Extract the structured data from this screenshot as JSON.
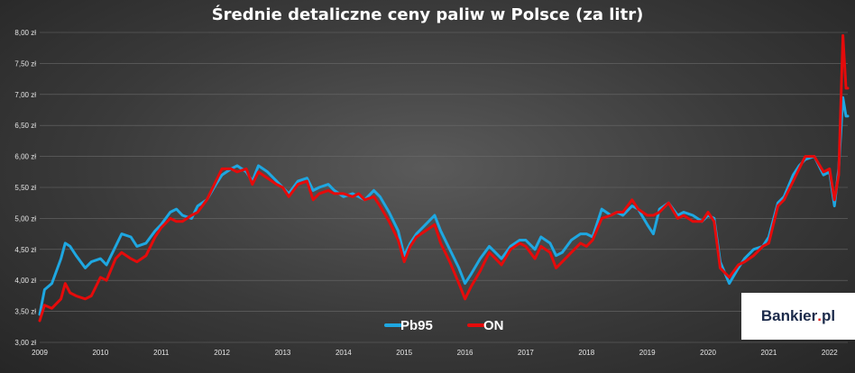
{
  "chart_data": {
    "type": "line",
    "title": "Średnie detaliczne ceny paliw w Polsce (za litr)",
    "xlabel": "",
    "ylabel": "",
    "xlim": [
      2009,
      2022.3
    ],
    "ylim": [
      3.0,
      8.0
    ],
    "y_ticks": [
      "3,00 zł",
      "3,50 zł",
      "4,00 zł",
      "4,50 zł",
      "5,00 zł",
      "5,50 zł",
      "6,00 zł",
      "6,50 zł",
      "7,00 zł",
      "7,50 zł",
      "8,00 zł"
    ],
    "x_ticks": [
      "2009",
      "2010",
      "2011",
      "2012",
      "2013",
      "2014",
      "2015",
      "2016",
      "2017",
      "2018",
      "2019",
      "2020",
      "2021",
      "2022"
    ],
    "grid": true,
    "legend": "bottom-center",
    "series": [
      {
        "name": "Pb95",
        "color": "#1ea7e1",
        "x": [
          2009.0,
          2009.08,
          2009.2,
          2009.35,
          2009.42,
          2009.5,
          2009.6,
          2009.75,
          2009.85,
          2010.0,
          2010.1,
          2010.25,
          2010.35,
          2010.5,
          2010.6,
          2010.75,
          2010.9,
          2011.0,
          2011.15,
          2011.25,
          2011.35,
          2011.5,
          2011.6,
          2011.75,
          2011.9,
          2012.0,
          2012.15,
          2012.25,
          2012.4,
          2012.5,
          2012.6,
          2012.75,
          2012.9,
          2013.0,
          2013.1,
          2013.25,
          2013.4,
          2013.5,
          2013.6,
          2013.75,
          2013.85,
          2014.0,
          2014.15,
          2014.25,
          2014.35,
          2014.5,
          2014.6,
          2014.75,
          2014.9,
          2015.0,
          2015.1,
          2015.2,
          2015.35,
          2015.5,
          2015.6,
          2015.75,
          2015.9,
          2016.0,
          2016.1,
          2016.25,
          2016.4,
          2016.5,
          2016.6,
          2016.75,
          2016.9,
          2017.0,
          2017.15,
          2017.25,
          2017.4,
          2017.5,
          2017.6,
          2017.75,
          2017.9,
          2018.0,
          2018.1,
          2018.25,
          2018.4,
          2018.5,
          2018.6,
          2018.75,
          2018.85,
          2019.0,
          2019.1,
          2019.2,
          2019.35,
          2019.5,
          2019.6,
          2019.75,
          2019.9,
          2020.0,
          2020.1,
          2020.2,
          2020.35,
          2020.5,
          2020.6,
          2020.75,
          2020.9,
          2021.0,
          2021.15,
          2021.25,
          2021.4,
          2021.5,
          2021.6,
          2021.75,
          2021.9,
          2022.0,
          2022.08,
          2022.15,
          2022.22,
          2022.27,
          2022.3
        ],
        "values": [
          3.45,
          3.85,
          3.95,
          4.35,
          4.6,
          4.55,
          4.4,
          4.2,
          4.3,
          4.35,
          4.25,
          4.55,
          4.75,
          4.7,
          4.55,
          4.6,
          4.8,
          4.9,
          5.1,
          5.15,
          5.05,
          5.0,
          5.2,
          5.3,
          5.55,
          5.7,
          5.8,
          5.85,
          5.75,
          5.6,
          5.85,
          5.75,
          5.6,
          5.5,
          5.4,
          5.6,
          5.65,
          5.45,
          5.5,
          5.55,
          5.45,
          5.35,
          5.4,
          5.35,
          5.3,
          5.45,
          5.35,
          5.1,
          4.8,
          4.4,
          4.6,
          4.75,
          4.9,
          5.05,
          4.8,
          4.5,
          4.2,
          3.95,
          4.1,
          4.35,
          4.55,
          4.45,
          4.35,
          4.55,
          4.65,
          4.65,
          4.5,
          4.7,
          4.6,
          4.4,
          4.45,
          4.65,
          4.75,
          4.75,
          4.7,
          5.15,
          5.05,
          5.1,
          5.05,
          5.2,
          5.15,
          4.9,
          4.75,
          5.15,
          5.25,
          5.05,
          5.1,
          5.05,
          4.95,
          5.05,
          5.0,
          4.3,
          3.95,
          4.2,
          4.35,
          4.5,
          4.55,
          4.7,
          5.25,
          5.35,
          5.7,
          5.85,
          5.95,
          6.0,
          5.7,
          5.75,
          5.2,
          5.8,
          6.95,
          6.65,
          6.65
        ]
      },
      {
        "name": "ON",
        "color": "#e50b0b",
        "x": [
          2009.0,
          2009.08,
          2009.2,
          2009.35,
          2009.42,
          2009.5,
          2009.6,
          2009.75,
          2009.85,
          2010.0,
          2010.1,
          2010.25,
          2010.35,
          2010.5,
          2010.6,
          2010.75,
          2010.9,
          2011.0,
          2011.15,
          2011.25,
          2011.35,
          2011.5,
          2011.6,
          2011.75,
          2011.9,
          2012.0,
          2012.15,
          2012.25,
          2012.4,
          2012.5,
          2012.6,
          2012.75,
          2012.9,
          2013.0,
          2013.1,
          2013.25,
          2013.4,
          2013.5,
          2013.6,
          2013.75,
          2013.85,
          2014.0,
          2014.15,
          2014.25,
          2014.35,
          2014.5,
          2014.6,
          2014.75,
          2014.9,
          2015.0,
          2015.1,
          2015.2,
          2015.35,
          2015.5,
          2015.6,
          2015.75,
          2015.9,
          2016.0,
          2016.1,
          2016.25,
          2016.4,
          2016.5,
          2016.6,
          2016.75,
          2016.9,
          2017.0,
          2017.15,
          2017.25,
          2017.4,
          2017.5,
          2017.6,
          2017.75,
          2017.9,
          2018.0,
          2018.1,
          2018.25,
          2018.4,
          2018.5,
          2018.6,
          2018.75,
          2018.85,
          2019.0,
          2019.1,
          2019.2,
          2019.35,
          2019.5,
          2019.6,
          2019.75,
          2019.9,
          2020.0,
          2020.1,
          2020.2,
          2020.35,
          2020.5,
          2020.6,
          2020.75,
          2020.9,
          2021.0,
          2021.15,
          2021.25,
          2021.4,
          2021.5,
          2021.6,
          2021.75,
          2021.9,
          2022.0,
          2022.08,
          2022.15,
          2022.22,
          2022.27,
          2022.3
        ],
        "values": [
          3.35,
          3.6,
          3.55,
          3.7,
          3.95,
          3.8,
          3.75,
          3.7,
          3.75,
          4.05,
          4.0,
          4.35,
          4.45,
          4.35,
          4.3,
          4.4,
          4.7,
          4.85,
          5.0,
          4.95,
          4.95,
          5.05,
          5.1,
          5.3,
          5.6,
          5.8,
          5.8,
          5.75,
          5.8,
          5.55,
          5.75,
          5.65,
          5.55,
          5.5,
          5.35,
          5.55,
          5.6,
          5.3,
          5.4,
          5.45,
          5.4,
          5.4,
          5.35,
          5.4,
          5.3,
          5.35,
          5.2,
          4.95,
          4.65,
          4.3,
          4.55,
          4.7,
          4.8,
          4.9,
          4.6,
          4.3,
          3.95,
          3.7,
          3.9,
          4.15,
          4.45,
          4.35,
          4.25,
          4.5,
          4.6,
          4.55,
          4.35,
          4.55,
          4.45,
          4.2,
          4.3,
          4.45,
          4.6,
          4.55,
          4.65,
          5.0,
          5.05,
          5.1,
          5.1,
          5.3,
          5.15,
          5.05,
          5.05,
          5.1,
          5.25,
          5.0,
          5.05,
          4.95,
          4.95,
          5.1,
          4.95,
          4.2,
          4.05,
          4.25,
          4.3,
          4.4,
          4.55,
          4.6,
          5.2,
          5.3,
          5.6,
          5.8,
          6.0,
          6.0,
          5.75,
          5.8,
          5.3,
          5.7,
          7.95,
          7.1,
          7.1
        ]
      }
    ]
  },
  "logo": {
    "text": "Bankier",
    "dot": ".",
    "suffix": "pl"
  }
}
